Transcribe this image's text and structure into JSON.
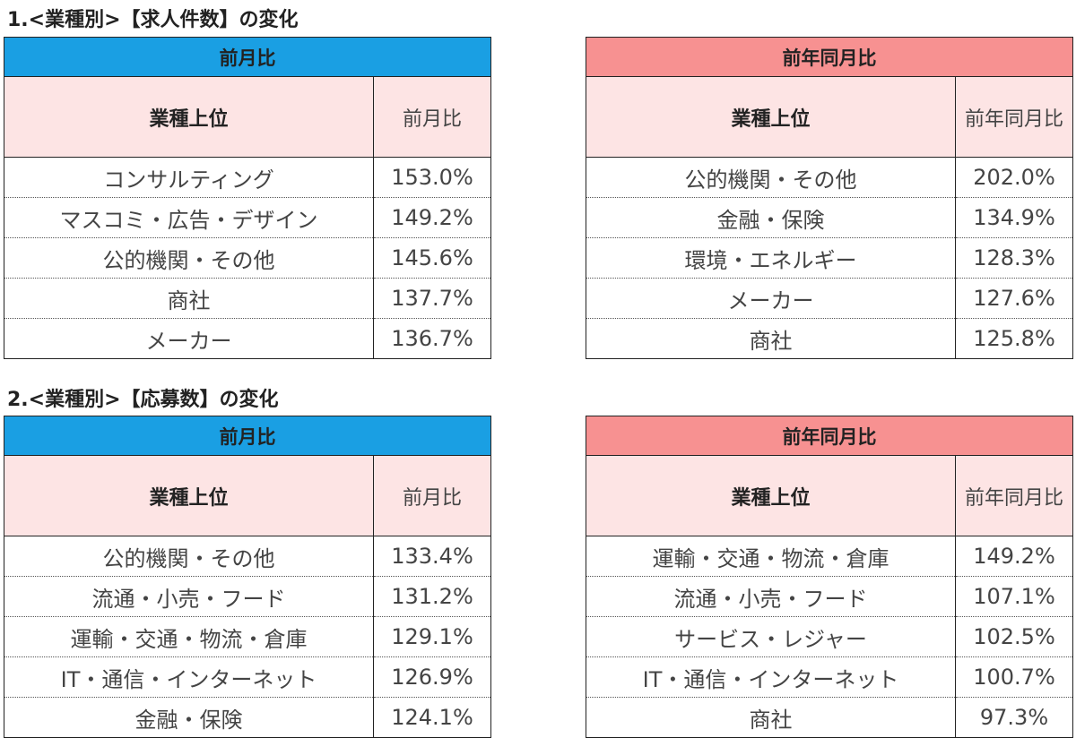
{
  "sections": [
    {
      "title": "1.<業種別>【求人件数】の変化",
      "left": {
        "band": "前月比",
        "col_label": "業種上位",
        "col_value": "前月比",
        "rows": [
          {
            "name": "コンサルティング",
            "value": "153.0%"
          },
          {
            "name": "マスコミ・広告・デザイン",
            "value": "149.2%"
          },
          {
            "name": "公的機関・その他",
            "value": "145.6%"
          },
          {
            "name": "商社",
            "value": "137.7%"
          },
          {
            "name": "メーカー",
            "value": "136.7%"
          }
        ]
      },
      "right": {
        "band": "前年同月比",
        "col_label": "業種上位",
        "col_value": "前年同月比",
        "rows": [
          {
            "name": "公的機関・その他",
            "value": "202.0%"
          },
          {
            "name": "金融・保険",
            "value": "134.9%"
          },
          {
            "name": "環境・エネルギー",
            "value": "128.3%"
          },
          {
            "name": "メーカー",
            "value": "127.6%"
          },
          {
            "name": "商社",
            "value": "125.8%"
          }
        ]
      }
    },
    {
      "title": "2.<業種別>【応募数】の変化",
      "left": {
        "band": "前月比",
        "col_label": "業種上位",
        "col_value": "前月比",
        "rows": [
          {
            "name": "公的機関・その他",
            "value": "133.4%"
          },
          {
            "name": "流通・小売・フード",
            "value": "131.2%"
          },
          {
            "name": "運輸・交通・物流・倉庫",
            "value": "129.1%"
          },
          {
            "name": "IT・通信・インターネット",
            "value": "126.9%"
          },
          {
            "name": "金融・保険",
            "value": "124.1%"
          }
        ]
      },
      "right": {
        "band": "前年同月比",
        "col_label": "業種上位",
        "col_value": "前年同月比",
        "rows": [
          {
            "name": "運輸・交通・物流・倉庫",
            "value": "149.2%"
          },
          {
            "name": "流通・小売・フード",
            "value": "107.1%"
          },
          {
            "name": "サービス・レジャー",
            "value": "102.5%"
          },
          {
            "name": "IT・通信・インターネット",
            "value": "100.7%"
          },
          {
            "name": "商社",
            "value": "97.3%"
          }
        ]
      }
    }
  ],
  "colors": {
    "month_band": "#1a9fe3",
    "year_band": "#f79191",
    "header_fill": "#fde4e4"
  }
}
